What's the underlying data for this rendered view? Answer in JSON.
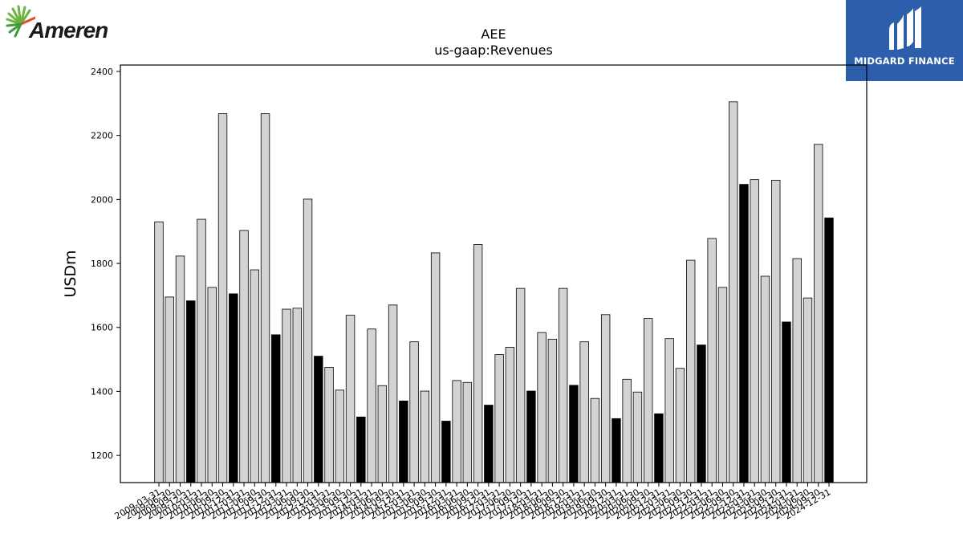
{
  "header": {
    "left_logo_text": "Ameren",
    "right_logo_text": "MIDGARD FINANCE"
  },
  "chart_data": {
    "type": "bar",
    "title": "AEE",
    "subtitle": "us-gaap:Revenues",
    "xlabel": "",
    "ylabel": "USDm",
    "ylim": [
      1115,
      2420
    ],
    "yticks": [
      1200,
      1400,
      1600,
      1800,
      2000,
      2200,
      2400
    ],
    "grid": false,
    "colors": {
      "quarter": "#d3d3d3",
      "annual": "#000000",
      "edge": "#000000"
    },
    "categories": [
      "2009-03-31",
      "2009-06-30",
      "2009-09-30",
      "2009-12-31",
      "2010-03-31",
      "2010-06-30",
      "2010-09-30",
      "2010-12-31",
      "2011-03-31",
      "2011-06-30",
      "2011-09-30",
      "2011-12-31",
      "2012-03-31",
      "2012-06-30",
      "2012-09-30",
      "2012-12-31",
      "2013-03-31",
      "2013-06-30",
      "2013-09-30",
      "2013-12-31",
      "2014-03-31",
      "2014-06-30",
      "2014-09-30",
      "2014-12-31",
      "2015-03-31",
      "2015-06-30",
      "2015-09-30",
      "2015-12-31",
      "2016-03-31",
      "2016-06-30",
      "2016-09-30",
      "2016-12-31",
      "2017-03-31",
      "2017-06-30",
      "2017-09-30",
      "2017-12-31",
      "2018-03-31",
      "2018-06-30",
      "2018-09-30",
      "2018-12-31",
      "2019-03-31",
      "2019-06-30",
      "2019-09-30",
      "2019-12-31",
      "2020-03-31",
      "2020-06-30",
      "2020-09-30",
      "2020-12-31",
      "2021-03-31",
      "2021-06-30",
      "2021-09-30",
      "2021-12-31",
      "2022-03-31",
      "2022-06-30",
      "2022-09-30",
      "2022-12-31",
      "2023-03-31",
      "2023-06-30",
      "2023-09-30",
      "2023-12-31",
      "2024-03-31",
      "2024-06-30",
      "2024-09-30",
      "2024-12-31"
    ],
    "tick_labels_shown": [
      "2009-03-31",
      "2009-06-30",
      "2009-09-30",
      "2009-12-31",
      "2010-03-31",
      "2010-06-30",
      "2010-09-30",
      "2010-12-31",
      "2011-03-31",
      "2011-06-30",
      "2011-09-30",
      "2011-12-31",
      "2012-03-31",
      "2012-06-30",
      "2012-09-30",
      "2012-12-31",
      "2013-03-31",
      "2013-06-30",
      "2013-09-30",
      "2013-12-31",
      "2014-03-31",
      "2014-06-30",
      "2014-09-30",
      "2014-12-31",
      "2015-03-31",
      "2015-06-30",
      "2015-09-30",
      "2015-12-31",
      "2016-03-31",
      "2016-06-30",
      "2016-09-30",
      "2016-12-31",
      "2017-03-31",
      "2017-06-30",
      "2017-09-30",
      "2017-12-31",
      "2018-03-31",
      "2018-06-30",
      "2018-09-30",
      "2018-12-31",
      "2019-03-31",
      "2019-06-30",
      "2019-09-30",
      "2019-12-31",
      "2020-03-31",
      "2020-06-30",
      "2020-09-30",
      "2020-12-31",
      "2021-03-31",
      "2021-06-30",
      "2021-09-30",
      "2021-12-31",
      "2022-03-31",
      "2022-06-30",
      "2022-09-30",
      "2022-12-31",
      "2023-03-31",
      "2023-06-30",
      "2023-09-30",
      "2023-12-31",
      "2024-03-31",
      "2024-06-30",
      "2024-09-30",
      "2024-12-31"
    ],
    "values": [
      1930,
      1695,
      1823,
      1683,
      1938,
      1725,
      2268,
      1705,
      1903,
      1780,
      2268,
      1577,
      1657,
      1660,
      2001,
      1510,
      1475,
      1404,
      1638,
      1320,
      1595,
      1418,
      1670,
      1370,
      1555,
      1401,
      1833,
      1307,
      1434,
      1428,
      1859,
      1357,
      1515,
      1538,
      1722,
      1401,
      1584,
      1563,
      1722,
      1419,
      1555,
      1378,
      1640,
      1315,
      1438,
      1398,
      1628,
      1330,
      1565,
      1472,
      1810,
      1545,
      1878,
      1725,
      2305,
      2047,
      2062,
      1760,
      2060,
      1617,
      1815,
      1692,
      2172,
      1942
    ],
    "annual_marker_every": 4
  }
}
